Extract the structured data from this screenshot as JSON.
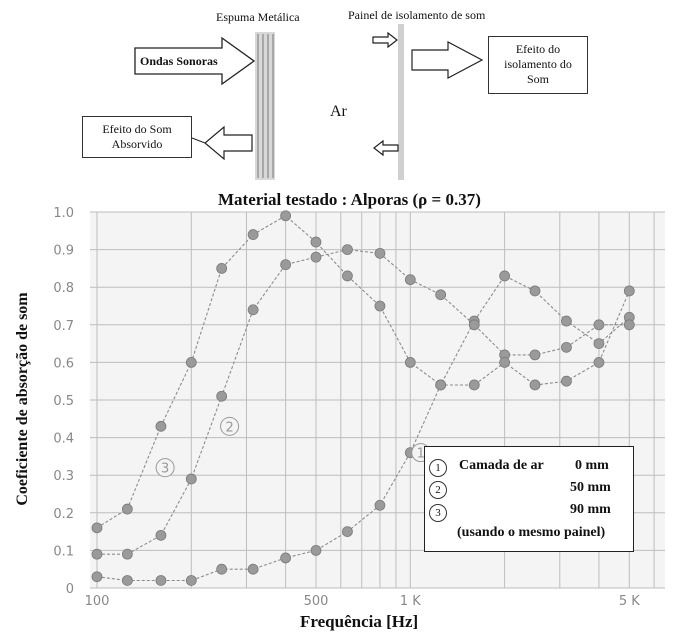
{
  "diagram": {
    "foam_label": "Espuma Metálica",
    "panel_label": "Painel de isolamento de som",
    "waves_label": "Ondas Sonoras",
    "air_label": "Ar",
    "insulation_effect": [
      "Efeito do",
      "isolamento do",
      "Som"
    ],
    "absorbed_effect": [
      "Efeito do Som",
      "Absorvido"
    ]
  },
  "legend": {
    "title": "Camada de ar",
    "rows": [
      {
        "num": "1",
        "value": "0 mm"
      },
      {
        "num": "2",
        "value": "50 mm"
      },
      {
        "num": "3",
        "value": "90 mm"
      }
    ],
    "note": "(usando o mesmo painel)"
  },
  "chart_data": {
    "type": "line",
    "title": "Material testado : Alporas (ρ = 0.37)",
    "xlabel": "Frequência [Hz]",
    "ylabel": "Coeficiente de absorção de som",
    "xscale": "log",
    "xlim": [
      95,
      6500
    ],
    "ylim": [
      0,
      1.0
    ],
    "x_ticks": [
      100,
      500,
      1000,
      5000
    ],
    "x_tick_labels": [
      "100",
      "500",
      "1 K",
      "5 K"
    ],
    "y_ticks": [
      0,
      0.1,
      0.2,
      0.3,
      0.4,
      0.5,
      0.6,
      0.7,
      0.8,
      0.9,
      1.0
    ],
    "y_tick_labels": [
      "0",
      "0.1",
      "0.2",
      "0.3",
      "0.4",
      "0.5",
      "0.6",
      "0.7",
      "0.8",
      "0.9",
      "1.0"
    ],
    "grid": true,
    "series": [
      {
        "name": "1",
        "label_at": [
          1080,
          0.36
        ],
        "x": [
          100,
          125,
          160,
          200,
          250,
          315,
          400,
          500,
          630,
          800,
          1000,
          1250,
          1600,
          2000,
          2500,
          3150,
          4000,
          5000
        ],
        "y": [
          0.03,
          0.02,
          0.02,
          0.02,
          0.05,
          0.05,
          0.08,
          0.1,
          0.15,
          0.22,
          0.36,
          0.54,
          0.71,
          0.83,
          0.79,
          0.71,
          0.65,
          0.72
        ]
      },
      {
        "name": "2",
        "label_at": [
          265,
          0.43
        ],
        "x": [
          100,
          125,
          160,
          200,
          250,
          315,
          400,
          500,
          630,
          800,
          1000,
          1250,
          1600,
          2000,
          2500,
          3150,
          4000,
          5000
        ],
        "y": [
          0.09,
          0.09,
          0.14,
          0.29,
          0.51,
          0.74,
          0.86,
          0.88,
          0.9,
          0.89,
          0.82,
          0.78,
          0.7,
          0.62,
          0.62,
          0.64,
          0.7,
          0.7
        ]
      },
      {
        "name": "3",
        "label_at": [
          165,
          0.32
        ],
        "x": [
          100,
          125,
          160,
          200,
          250,
          315,
          400,
          500,
          630,
          800,
          1000,
          1250,
          1600,
          2000,
          2500,
          3150,
          4000,
          5000
        ],
        "y": [
          0.16,
          0.21,
          0.43,
          0.6,
          0.85,
          0.94,
          0.99,
          0.92,
          0.83,
          0.75,
          0.6,
          0.54,
          0.54,
          0.6,
          0.54,
          0.55,
          0.6,
          0.79
        ]
      }
    ]
  }
}
